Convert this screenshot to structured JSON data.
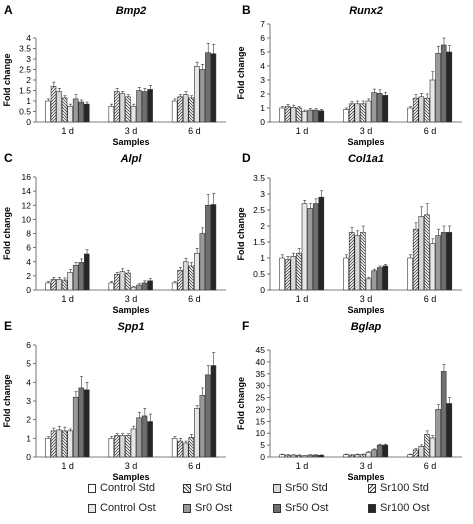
{
  "legend": [
    {
      "label": "Control Std",
      "fill": "#ffffff",
      "pattern": "solid"
    },
    {
      "label": "Sr0 Std",
      "fill": "#ffffff",
      "pattern": "hatch-right"
    },
    {
      "label": "Sr50 Std",
      "fill": "#d8d8d8",
      "pattern": "solid"
    },
    {
      "label": "Sr100 Std",
      "fill": "#ffffff",
      "pattern": "hatch-left"
    },
    {
      "label": "Control Ost",
      "fill": "#e6e6e6",
      "pattern": "solid"
    },
    {
      "label": "Sr0 Ost",
      "fill": "#9a9a9a",
      "pattern": "solid"
    },
    {
      "label": "Sr50 Ost",
      "fill": "#707070",
      "pattern": "solid"
    },
    {
      "label": "Sr100 Ost",
      "fill": "#262626",
      "pattern": "solid"
    }
  ],
  "chart_data": [
    {
      "panel": "A",
      "type": "bar",
      "title": "Bmp2",
      "xlabel": "Samples",
      "ylabel": "Fold change",
      "ylim": [
        0,
        4
      ],
      "yticks": [
        "0",
        "0.5",
        "1",
        "1.5",
        "2",
        "2.5",
        "3",
        "3.5",
        "4"
      ],
      "categories": [
        "1 d",
        "3 d",
        "6 d"
      ],
      "series": [
        {
          "name": "Control Std",
          "values": [
            1.0,
            0.75,
            1.0
          ]
        },
        {
          "name": "Sr0 Std",
          "values": [
            1.7,
            1.45,
            1.2
          ]
        },
        {
          "name": "Sr50 Std",
          "values": [
            1.45,
            1.35,
            1.3
          ]
        },
        {
          "name": "Sr100 Std",
          "values": [
            1.15,
            1.2,
            1.15
          ]
        },
        {
          "name": "Control Ost",
          "values": [
            0.75,
            0.75,
            2.65
          ]
        },
        {
          "name": "Sr0 Ost",
          "values": [
            1.1,
            1.5,
            2.5
          ]
        },
        {
          "name": "Sr50 Ost",
          "values": [
            0.95,
            1.45,
            3.3
          ]
        },
        {
          "name": "Sr100 Ost",
          "values": [
            0.85,
            1.55,
            3.25
          ]
        }
      ],
      "errors": [
        [
          0.1,
          0.1,
          0.1
        ],
        [
          0.2,
          0.15,
          0.1
        ],
        [
          0.15,
          0.1,
          0.15
        ],
        [
          0.1,
          0.1,
          0.1
        ],
        [
          0.1,
          0.1,
          0.2
        ],
        [
          0.2,
          0.15,
          0.25
        ],
        [
          0.1,
          0.15,
          0.45
        ],
        [
          0.1,
          0.2,
          0.45
        ]
      ]
    },
    {
      "panel": "B",
      "type": "bar",
      "title": "Runx2",
      "xlabel": "Samples",
      "ylabel": "Fold change",
      "ylim": [
        0,
        7
      ],
      "yticks": [
        "0",
        "1",
        "2",
        "3",
        "4",
        "5",
        "6",
        "7"
      ],
      "categories": [
        "1 d",
        "3 d",
        "6 d"
      ],
      "series": [
        {
          "name": "Control Std",
          "values": [
            1.0,
            0.9,
            1.0
          ]
        },
        {
          "name": "Sr0 Std",
          "values": [
            1.1,
            1.3,
            1.7
          ]
        },
        {
          "name": "Sr50 Std",
          "values": [
            1.05,
            1.3,
            1.8
          ]
        },
        {
          "name": "Sr100 Std",
          "values": [
            1.0,
            1.3,
            1.7
          ]
        },
        {
          "name": "Control Ost",
          "values": [
            0.75,
            1.5,
            3.0
          ]
        },
        {
          "name": "Sr0 Ost",
          "values": [
            0.85,
            2.1,
            4.9
          ]
        },
        {
          "name": "Sr50 Ost",
          "values": [
            0.85,
            2.05,
            5.5
          ]
        },
        {
          "name": "Sr100 Ost",
          "values": [
            0.8,
            1.9,
            5.0
          ]
        }
      ],
      "errors": [
        [
          0.1,
          0.1,
          0.1
        ],
        [
          0.15,
          0.15,
          0.25
        ],
        [
          0.15,
          0.2,
          0.25
        ],
        [
          0.1,
          0.2,
          0.3
        ],
        [
          0.1,
          0.15,
          0.6
        ],
        [
          0.1,
          0.25,
          0.5
        ],
        [
          0.1,
          0.25,
          0.5
        ],
        [
          0.1,
          0.2,
          0.45
        ]
      ]
    },
    {
      "panel": "C",
      "type": "bar",
      "title": "Alpl",
      "xlabel": "Samples",
      "ylabel": "Fold change",
      "ylim": [
        0,
        16
      ],
      "yticks": [
        "0",
        "2",
        "4",
        "6",
        "8",
        "10",
        "12",
        "14",
        "16"
      ],
      "categories": [
        "1 d",
        "3 d",
        "6 d"
      ],
      "series": [
        {
          "name": "Control Std",
          "values": [
            1.0,
            1.0,
            1.0
          ]
        },
        {
          "name": "Sr0 Std",
          "values": [
            1.5,
            2.2,
            2.8
          ]
        },
        {
          "name": "Sr50 Std",
          "values": [
            1.5,
            2.6,
            4.0
          ]
        },
        {
          "name": "Sr100 Std",
          "values": [
            1.4,
            2.4,
            3.4
          ]
        },
        {
          "name": "Control Ost",
          "values": [
            2.5,
            0.4,
            5.2
          ]
        },
        {
          "name": "Sr0 Ost",
          "values": [
            3.5,
            0.7,
            8.0
          ]
        },
        {
          "name": "Sr50 Ost",
          "values": [
            3.9,
            1.0,
            12.0
          ]
        },
        {
          "name": "Sr100 Ost",
          "values": [
            5.1,
            1.3,
            12.1
          ]
        }
      ],
      "errors": [
        [
          0.2,
          0.2,
          0.2
        ],
        [
          0.3,
          0.3,
          0.4
        ],
        [
          0.3,
          0.4,
          0.5
        ],
        [
          0.3,
          0.4,
          0.5
        ],
        [
          0.4,
          0.1,
          0.7
        ],
        [
          0.4,
          0.2,
          0.8
        ],
        [
          0.5,
          0.3,
          1.5
        ],
        [
          0.6,
          0.3,
          1.6
        ]
      ]
    },
    {
      "panel": "D",
      "type": "bar",
      "title": "Col1a1",
      "xlabel": "Samples",
      "ylabel": "Fold change",
      "ylim": [
        0,
        3.5
      ],
      "yticks": [
        "0",
        "0.5",
        "1",
        "1.5",
        "2",
        "2.5",
        "3",
        "3.5"
      ],
      "categories": [
        "1 d",
        "3 d",
        "6 d"
      ],
      "series": [
        {
          "name": "Control Std",
          "values": [
            1.0,
            1.0,
            1.0
          ]
        },
        {
          "name": "Sr0 Std",
          "values": [
            0.95,
            1.8,
            1.9
          ]
        },
        {
          "name": "Sr50 Std",
          "values": [
            1.05,
            1.7,
            2.3
          ]
        },
        {
          "name": "Sr100 Std",
          "values": [
            1.15,
            1.8,
            2.35
          ]
        },
        {
          "name": "Control Ost",
          "values": [
            2.7,
            0.35,
            1.45
          ]
        },
        {
          "name": "Sr0 Ost",
          "values": [
            2.55,
            0.6,
            1.7
          ]
        },
        {
          "name": "Sr50 Ost",
          "values": [
            2.7,
            0.7,
            1.8
          ]
        },
        {
          "name": "Sr100 Ost",
          "values": [
            2.9,
            0.75,
            1.8
          ]
        }
      ],
      "errors": [
        [
          0.1,
          0.1,
          0.1
        ],
        [
          0.1,
          0.15,
          0.2
        ],
        [
          0.1,
          0.15,
          0.3
        ],
        [
          0.15,
          0.2,
          0.35
        ],
        [
          0.1,
          0.05,
          0.15
        ],
        [
          0.15,
          0.05,
          0.2
        ],
        [
          0.15,
          0.05,
          0.2
        ],
        [
          0.2,
          0.05,
          0.2
        ]
      ]
    },
    {
      "panel": "E",
      "type": "bar",
      "title": "Spp1",
      "xlabel": "Samples",
      "ylabel": "Fold change",
      "ylim": [
        0,
        6
      ],
      "yticks": [
        "0",
        "1",
        "2",
        "3",
        "4",
        "5",
        "6"
      ],
      "categories": [
        "1 d",
        "3 d",
        "6 d"
      ],
      "series": [
        {
          "name": "Control Std",
          "values": [
            1.0,
            1.0,
            1.0
          ]
        },
        {
          "name": "Sr0 Std",
          "values": [
            1.4,
            1.15,
            0.85
          ]
        },
        {
          "name": "Sr50 Std",
          "values": [
            1.45,
            1.15,
            0.75
          ]
        },
        {
          "name": "Sr100 Std",
          "values": [
            1.4,
            1.15,
            1.05
          ]
        },
        {
          "name": "Control Ost",
          "values": [
            1.4,
            1.5,
            2.6
          ]
        },
        {
          "name": "Sr0 Ost",
          "values": [
            3.2,
            2.1,
            3.3
          ]
        },
        {
          "name": "Sr50 Ost",
          "values": [
            3.7,
            2.2,
            4.4
          ]
        },
        {
          "name": "Sr100 Ost",
          "values": [
            3.6,
            1.9,
            4.9
          ]
        }
      ],
      "errors": [
        [
          0.1,
          0.1,
          0.1
        ],
        [
          0.15,
          0.1,
          0.15
        ],
        [
          0.2,
          0.1,
          0.1
        ],
        [
          0.2,
          0.1,
          0.15
        ],
        [
          0.1,
          0.15,
          0.15
        ],
        [
          0.3,
          0.3,
          0.4
        ],
        [
          0.6,
          0.4,
          0.5
        ],
        [
          0.4,
          0.4,
          0.7
        ]
      ]
    },
    {
      "panel": "F",
      "type": "bar",
      "title": "Bglap",
      "xlabel": "Samples",
      "ylabel": "Fold change",
      "ylim": [
        0,
        45
      ],
      "yticks": [
        "0",
        "5",
        "10",
        "15",
        "20",
        "25",
        "30",
        "35",
        "40",
        "45"
      ],
      "categories": [
        "1 d",
        "3 d",
        "6 d"
      ],
      "series": [
        {
          "name": "Control Std",
          "values": [
            1.0,
            1.0,
            1.0
          ]
        },
        {
          "name": "Sr0 Std",
          "values": [
            0.8,
            0.8,
            3.0
          ]
        },
        {
          "name": "Sr50 Std",
          "values": [
            0.8,
            1.0,
            4.5
          ]
        },
        {
          "name": "Sr100 Std",
          "values": [
            0.7,
            1.0,
            9.5
          ]
        },
        {
          "name": "Control Ost",
          "values": [
            0.5,
            2.0,
            8.0
          ]
        },
        {
          "name": "Sr0 Ost",
          "values": [
            0.8,
            3.0,
            20.0
          ]
        },
        {
          "name": "Sr50 Ost",
          "values": [
            0.8,
            5.0,
            36.0
          ]
        },
        {
          "name": "Sr100 Ost",
          "values": [
            0.7,
            5.0,
            22.5
          ]
        }
      ],
      "errors": [
        [
          0.2,
          0.2,
          0.2
        ],
        [
          0.2,
          0.2,
          0.5
        ],
        [
          0.2,
          0.2,
          0.6
        ],
        [
          0.2,
          0.2,
          1.5
        ],
        [
          0.1,
          0.3,
          1.0
        ],
        [
          0.2,
          0.4,
          2.0
        ],
        [
          0.2,
          0.4,
          3.0
        ],
        [
          0.2,
          0.4,
          2.5
        ]
      ]
    }
  ]
}
